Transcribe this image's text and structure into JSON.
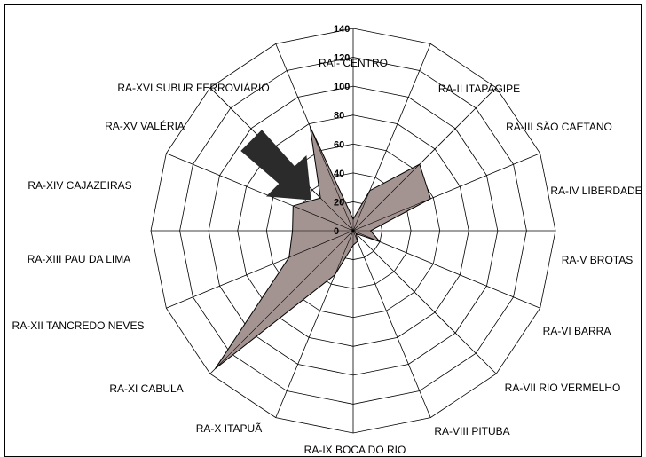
{
  "chart_data": {
    "type": "radar",
    "title": "",
    "categories": [
      "RAI- CENTRO",
      "RA-II ITAPAGIPE",
      "RA-III SÃO CAETANO",
      "RA-IV LIBERDADE",
      "RA-V BROTAS",
      "RA-VI BARRA",
      "RA-VII RIO VERMELHO",
      "RA-VIII PITUBA",
      "RA-IX BOCA DO RIO",
      "RA-X ITAPUÃ",
      "RA-XI CABULA",
      "RA-XII TANCREDO NEVES",
      "RA-XIII PAU DA LIMA",
      "RA-XIV CAJAZEIRAS",
      "RA-XV VALÉRIA",
      "RA-XVI SUBUR FERROVIÁRIO"
    ],
    "series": [
      {
        "values": [
          8,
          30,
          65,
          58,
          12,
          20,
          3,
          8,
          10,
          33,
          135,
          48,
          42,
          45,
          32,
          78
        ]
      }
    ],
    "rlim": [
      0,
      140
    ],
    "ticks": [
      0,
      20,
      40,
      60,
      80,
      100,
      120,
      140
    ],
    "grid": true,
    "annotation": "arrow pointing to RA-XV VALÉRIA",
    "colors": {
      "fill": "#a39391",
      "stroke": "#000000",
      "grid": "#000000",
      "arrow": "#2b2b2b"
    }
  }
}
